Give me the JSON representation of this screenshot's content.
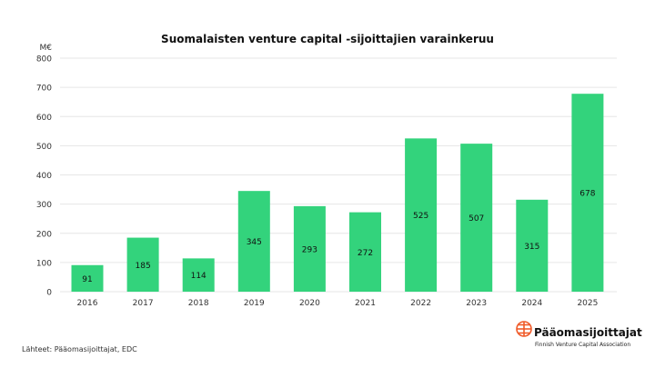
{
  "chart_data": {
    "type": "bar",
    "title": "Suomalaisten venture capital -sijoittajien varainkeruu",
    "ylabel": "M€",
    "xlabel": "",
    "categories": [
      "2016",
      "2017",
      "2018",
      "2019",
      "2020",
      "2021",
      "2022",
      "2023",
      "2024",
      "2025"
    ],
    "values": [
      91,
      185,
      114,
      345,
      293,
      272,
      525,
      507,
      315,
      678
    ],
    "ylim": [
      0,
      800
    ],
    "yticks": [
      0,
      100,
      200,
      300,
      400,
      500,
      600,
      700,
      800
    ],
    "grid": true,
    "bar_color": "#33D37C"
  },
  "source": "Lähteet: Pääomasijoittajat, EDC",
  "logo": {
    "name": "Pääomasijoittajat",
    "subtitle": "Finnish Venture Capital Association",
    "color": "#F05A28"
  }
}
